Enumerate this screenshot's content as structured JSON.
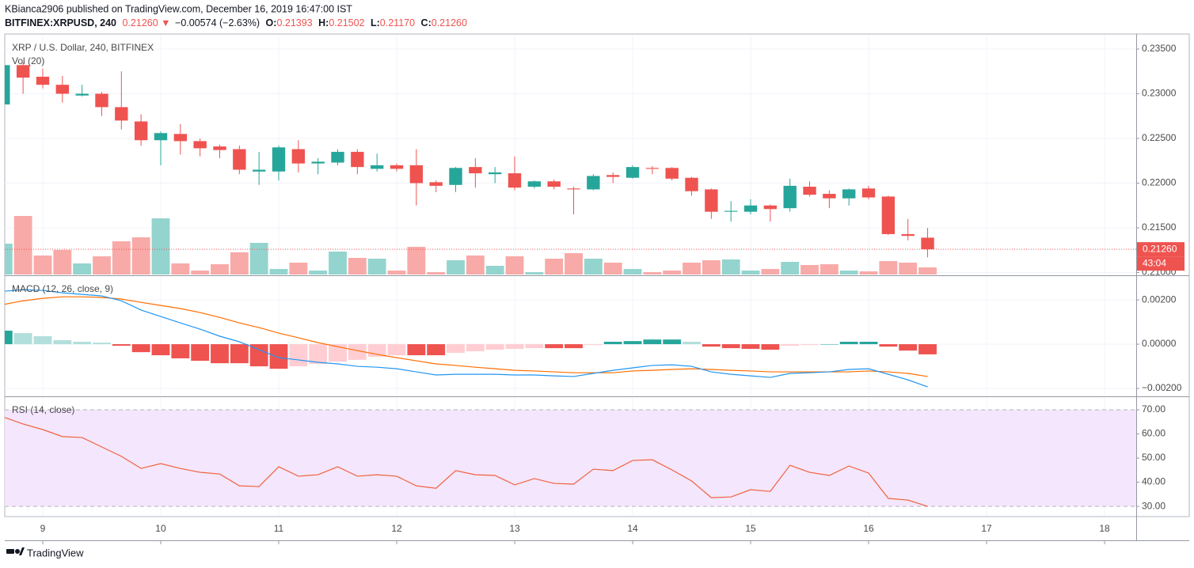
{
  "header": {
    "published": "KBianca2906 published on TradingView.com, December 16, 2019 16:47:00 IST",
    "symbol": "BITFINEX:XRPUSD, 240",
    "last": "0.21260",
    "arrow": "▼",
    "change": "−0.00574 (−2.63%)",
    "ohlc": [
      {
        "label": "O:",
        "value": "0.21393"
      },
      {
        "label": "H:",
        "value": "0.21502"
      },
      {
        "label": "L:",
        "value": "0.21170"
      },
      {
        "label": "C:",
        "value": "0.21260"
      }
    ]
  },
  "footer": "TradingView",
  "chart_data": [
    {
      "type": "candlestick",
      "title": "XRP / U.S. Dollar, 240, BITFINEX",
      "volume_title": "Vol (20)",
      "x": [
        8.6667,
        8.8333,
        9,
        9.1667,
        9.3333,
        9.5,
        9.6667,
        9.8333,
        10,
        10.1667,
        10.3333,
        10.5,
        10.6667,
        10.8333,
        11,
        11.1667,
        11.3333,
        11.5,
        11.6667,
        11.8333,
        12,
        12.1667,
        12.3333,
        12.5,
        12.6667,
        12.8333,
        13,
        13.1667,
        13.3333,
        13.5,
        13.6667,
        13.8333,
        14,
        14.1667,
        14.3333,
        14.5,
        14.6667,
        14.8333,
        15,
        15.1667,
        15.3333,
        15.5,
        15.6667,
        15.8333,
        16,
        16.1667,
        16.3333,
        16.5
      ],
      "xlim": [
        8.678,
        18.268
      ],
      "xticks": [
        9,
        10,
        11,
        12,
        13,
        14,
        15,
        16,
        17,
        18
      ],
      "open": [
        0.2288,
        0.2332,
        0.2319,
        0.231,
        0.2298,
        0.23,
        0.2285,
        0.2269,
        0.2248,
        0.2255,
        0.2247,
        0.2241,
        0.2238,
        0.2213,
        0.2213,
        0.2238,
        0.2222,
        0.2223,
        0.2235,
        0.2216,
        0.222,
        0.222,
        0.2201,
        0.2198,
        0.2218,
        0.221,
        0.2211,
        0.2196,
        0.2202,
        0.2194,
        0.2193,
        0.2209,
        0.2206,
        0.2217,
        0.2217,
        0.2206,
        0.2193,
        0.2168,
        0.2168,
        0.2175,
        0.2172,
        0.2196,
        0.2188,
        0.2183,
        0.2194,
        0.2185,
        0.2143,
        0.2139
      ],
      "high": [
        0.2335,
        0.2335,
        0.2328,
        0.232,
        0.231,
        0.2302,
        0.2325,
        0.2277,
        0.2258,
        0.2266,
        0.225,
        0.2243,
        0.2242,
        0.2235,
        0.2242,
        0.2248,
        0.2228,
        0.2238,
        0.2238,
        0.2233,
        0.2222,
        0.2238,
        0.2203,
        0.2218,
        0.2228,
        0.2218,
        0.223,
        0.2203,
        0.2204,
        0.2196,
        0.221,
        0.2212,
        0.222,
        0.2219,
        0.2218,
        0.2207,
        0.2194,
        0.218,
        0.2182,
        0.2176,
        0.2205,
        0.2202,
        0.2192,
        0.2194,
        0.2197,
        0.2186,
        0.216,
        0.215
      ],
      "low": [
        0.2288,
        0.23,
        0.2306,
        0.229,
        0.2297,
        0.2275,
        0.226,
        0.2242,
        0.222,
        0.2232,
        0.223,
        0.2228,
        0.221,
        0.2198,
        0.2203,
        0.2212,
        0.221,
        0.222,
        0.221,
        0.2213,
        0.2213,
        0.2175,
        0.219,
        0.219,
        0.2195,
        0.22,
        0.2192,
        0.2194,
        0.2193,
        0.2165,
        0.2192,
        0.22,
        0.2205,
        0.221,
        0.2203,
        0.2186,
        0.216,
        0.2157,
        0.2165,
        0.2157,
        0.2168,
        0.2185,
        0.2172,
        0.2175,
        0.2182,
        0.2142,
        0.2136,
        0.2117
      ],
      "close": [
        0.2332,
        0.2318,
        0.231,
        0.23,
        0.23,
        0.2285,
        0.227,
        0.2248,
        0.2256,
        0.2247,
        0.2239,
        0.2237,
        0.2215,
        0.2215,
        0.224,
        0.2222,
        0.2224,
        0.2235,
        0.2218,
        0.222,
        0.2216,
        0.22,
        0.2197,
        0.2217,
        0.2211,
        0.2212,
        0.2195,
        0.2202,
        0.2196,
        0.2193,
        0.2208,
        0.2207,
        0.2218,
        0.2216,
        0.2205,
        0.2191,
        0.2168,
        0.2169,
        0.2175,
        0.2171,
        0.2197,
        0.2187,
        0.2183,
        0.2193,
        0.2184,
        0.2143,
        0.2141,
        0.2126
      ],
      "volume": [
        39,
        74,
        24,
        31,
        14,
        23,
        42,
        47,
        71,
        14,
        5,
        13,
        28,
        40,
        7,
        15,
        5,
        29,
        21,
        20,
        5,
        35,
        3,
        18,
        24,
        11,
        23,
        3,
        20,
        27,
        20,
        15,
        7,
        3,
        5,
        15,
        18,
        19,
        5,
        7,
        16,
        12,
        13,
        5,
        4,
        17,
        15,
        9
      ],
      "up_color": "#26a69a",
      "down_color": "#ef5350",
      "volume_colors": {
        "up": "#94d4ce",
        "down": "#f8aaa8"
      },
      "ylim": [
        0.20978,
        0.23659
      ],
      "yticks": [
        {
          "value": 0.21,
          "label": "0.21000"
        },
        {
          "value": 0.215,
          "label": "0.21500"
        },
        {
          "value": 0.22,
          "label": "0.22000"
        },
        {
          "value": 0.225,
          "label": "0.22500"
        },
        {
          "value": 0.23,
          "label": "0.23000"
        },
        {
          "value": 0.235,
          "label": "0.23500"
        }
      ],
      "current_price": {
        "value": 0.2126,
        "label": "0.21260"
      },
      "countdown": "43:04",
      "grid": true
    },
    {
      "type": "macd",
      "title": "MACD (12, 26, close, 9)",
      "ylim": [
        -0.00232,
        0.00304
      ],
      "yticks": [
        {
          "value": 0.002,
          "label": "0.00200"
        },
        {
          "value": 0,
          "label": "0.00000"
        },
        {
          "value": -0.002,
          "label": "−0.00200"
        }
      ],
      "grid": true,
      "macd": {
        "color": "#2196f3",
        "values": [
          0.00239,
          0.00246,
          0.00243,
          0.00232,
          0.00225,
          0.00218,
          0.00196,
          0.00154,
          0.00125,
          0.00096,
          0.00068,
          0.00036,
          0.00011,
          -0.00025,
          -0.00061,
          -0.00071,
          -0.00082,
          -0.00089,
          -0.001,
          -0.00104,
          -0.00111,
          -0.00125,
          -0.00139,
          -0.00136,
          -0.00136,
          -0.00136,
          -0.00139,
          -0.00139,
          -0.00143,
          -0.00146,
          -0.00132,
          -0.00118,
          -0.00107,
          -0.00096,
          -0.00093,
          -0.001,
          -0.00125,
          -0.00136,
          -0.00143,
          -0.0015,
          -0.00132,
          -0.00129,
          -0.00125,
          -0.00114,
          -0.00111,
          -0.00136,
          -0.00161,
          -0.00193
        ]
      },
      "signal": {
        "color": "#ff6d00",
        "values": [
          0.00179,
          0.00196,
          0.00207,
          0.00214,
          0.00214,
          0.00211,
          0.00204,
          0.00189,
          0.00175,
          0.00161,
          0.00143,
          0.00121,
          0.00096,
          0.00075,
          0.0005,
          0.00029,
          7e-05,
          -0.00011,
          -0.00029,
          -0.00046,
          -0.00061,
          -0.00075,
          -0.00089,
          -0.00096,
          -0.00104,
          -0.00111,
          -0.00118,
          -0.00121,
          -0.00125,
          -0.00129,
          -0.00129,
          -0.00129,
          -0.00121,
          -0.00118,
          -0.00114,
          -0.00111,
          -0.00114,
          -0.00118,
          -0.00121,
          -0.00125,
          -0.00125,
          -0.00125,
          -0.00125,
          -0.00125,
          -0.00121,
          -0.00125,
          -0.00132,
          -0.00146
        ]
      },
      "histogram": {
        "colors": [
          "#26a69a",
          "#b2dfdb",
          "#ef5350",
          "#ffcdd2"
        ],
        "values": [
          0.00061,
          0.0005,
          0.00036,
          0.00018,
          0.00011,
          7e-05,
          -7e-05,
          -0.00036,
          -0.0005,
          -0.00064,
          -0.00075,
          -0.00086,
          -0.00086,
          -0.001,
          -0.00111,
          -0.001,
          -0.00089,
          -0.00079,
          -0.00071,
          -0.00057,
          -0.0005,
          -0.0005,
          -0.0005,
          -0.00039,
          -0.00032,
          -0.00025,
          -0.00021,
          -0.00018,
          -0.00018,
          -0.00018,
          -4e-05,
          0.00011,
          0.00014,
          0.00021,
          0.00021,
          0.00011,
          -0.00011,
          -0.00018,
          -0.00021,
          -0.00025,
          -7e-05,
          -4e-05,
          0,
          0.00011,
          0.00011,
          -0.00011,
          -0.00029,
          -0.00046
        ]
      }
    },
    {
      "type": "line",
      "title": "RSI (14, close)",
      "ylim": [
        26.1,
        74.9
      ],
      "yticks": [
        {
          "value": 30,
          "label": "30.00"
        },
        {
          "value": 40,
          "label": "40.00"
        },
        {
          "value": 50,
          "label": "50.00"
        },
        {
          "value": 60,
          "label": "60.00"
        },
        {
          "value": 70,
          "label": "70.00"
        }
      ],
      "bands": [
        30,
        70
      ],
      "band_fill": "#f4e6fc",
      "color": "#f0623d",
      "values": [
        67.0,
        64.1,
        61.8,
        58.9,
        58.5,
        54.6,
        50.7,
        45.7,
        47.7,
        45.7,
        44.1,
        43.4,
        38.5,
        38.2,
        46.4,
        42.5,
        43.1,
        46.4,
        42.5,
        43.1,
        42.5,
        38.5,
        37.5,
        44.8,
        43.1,
        42.8,
        38.9,
        41.5,
        39.5,
        39.2,
        45.4,
        44.8,
        49.0,
        49.3,
        45.1,
        40.5,
        33.6,
        33.9,
        36.9,
        36.2,
        47.0,
        44.1,
        42.8,
        46.7,
        43.8,
        33.3,
        32.6,
        30.0
      ]
    }
  ]
}
